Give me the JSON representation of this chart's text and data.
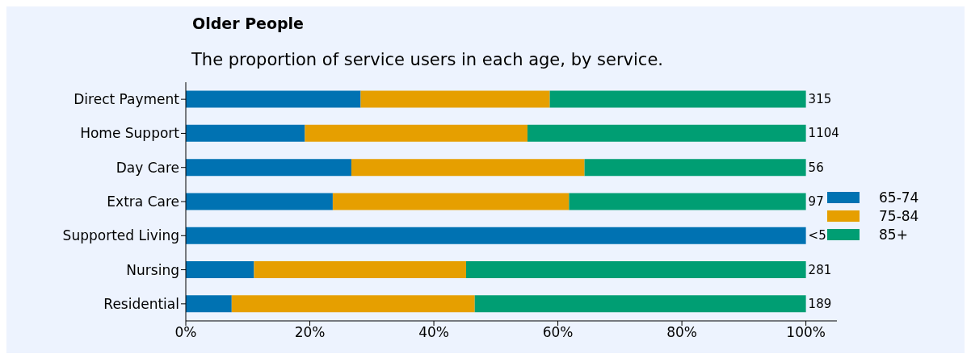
{
  "chart_data": {
    "type": "bar",
    "title": "Older People",
    "subtitle": "The proportion of service users in each age, by service.",
    "orientation": "horizontal",
    "stacked": true,
    "categories": [
      "Direct Payment",
      "Home Support",
      "Day Care",
      "Extra Care",
      "Supported Living",
      "Nursing",
      "Residential"
    ],
    "series": [
      {
        "name": "65-74",
        "color": "#0072b2",
        "values": [
          28.2,
          19.2,
          26.7,
          23.7,
          100,
          11.0,
          7.4
        ]
      },
      {
        "name": "75-84",
        "color": "#e69f00",
        "values": [
          30.5,
          35.9,
          37.6,
          38.1,
          0,
          34.2,
          39.2
        ]
      },
      {
        "name": "85+",
        "color": "#009e73",
        "values": [
          41.3,
          44.9,
          35.7,
          38.2,
          0,
          54.8,
          53.4
        ]
      }
    ],
    "annotations": [
      "315",
      "1104",
      "56",
      "97",
      "<5",
      "281",
      "189"
    ],
    "xlim": [
      0,
      105
    ],
    "xticks": [
      {
        "value": 0,
        "label": "0%"
      },
      {
        "value": 20,
        "label": "20%"
      },
      {
        "value": 40,
        "label": "40%"
      },
      {
        "value": 60,
        "label": "60%"
      },
      {
        "value": 80,
        "label": "80%"
      },
      {
        "value": 100,
        "label": "100%"
      }
    ],
    "grid": false,
    "legend": "right"
  }
}
